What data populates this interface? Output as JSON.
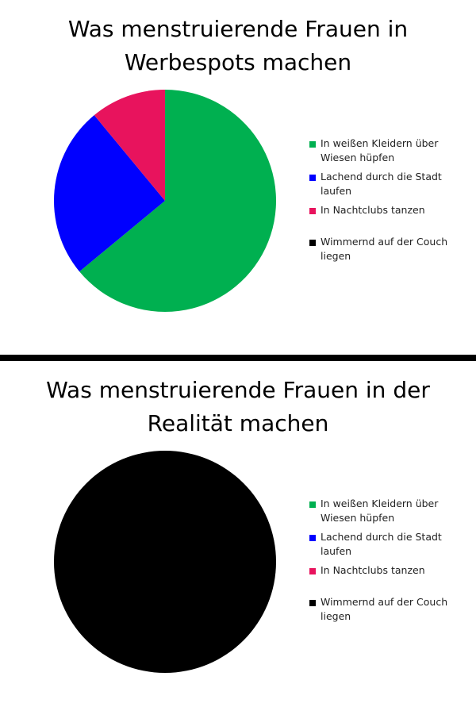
{
  "chart_data": [
    {
      "type": "pie",
      "title": "Was menstruierende Frauen in\nWerbespots machen",
      "categories": [
        "In weißen Kleidern über Wiesen hüpfen",
        "Lachend durch die Stadt laufen",
        "In Nachtclubs tanzen",
        "Wimmernd auf der Couch liegen"
      ],
      "values": [
        64,
        25,
        11,
        0
      ],
      "colors": [
        "#00b050",
        "#0000ff",
        "#e8135d",
        "#000000"
      ],
      "legend_position": "right"
    },
    {
      "type": "pie",
      "title": "Was menstruierende Frauen in der\nRealität machen",
      "categories": [
        "In weißen Kleidern über Wiesen hüpfen",
        "Lachend durch die Stadt laufen",
        "In Nachtclubs tanzen",
        "Wimmernd auf der Couch liegen"
      ],
      "values": [
        0,
        0,
        0,
        100
      ],
      "colors": [
        "#00b050",
        "#0000ff",
        "#e8135d",
        "#000000"
      ],
      "legend_position": "right"
    }
  ]
}
